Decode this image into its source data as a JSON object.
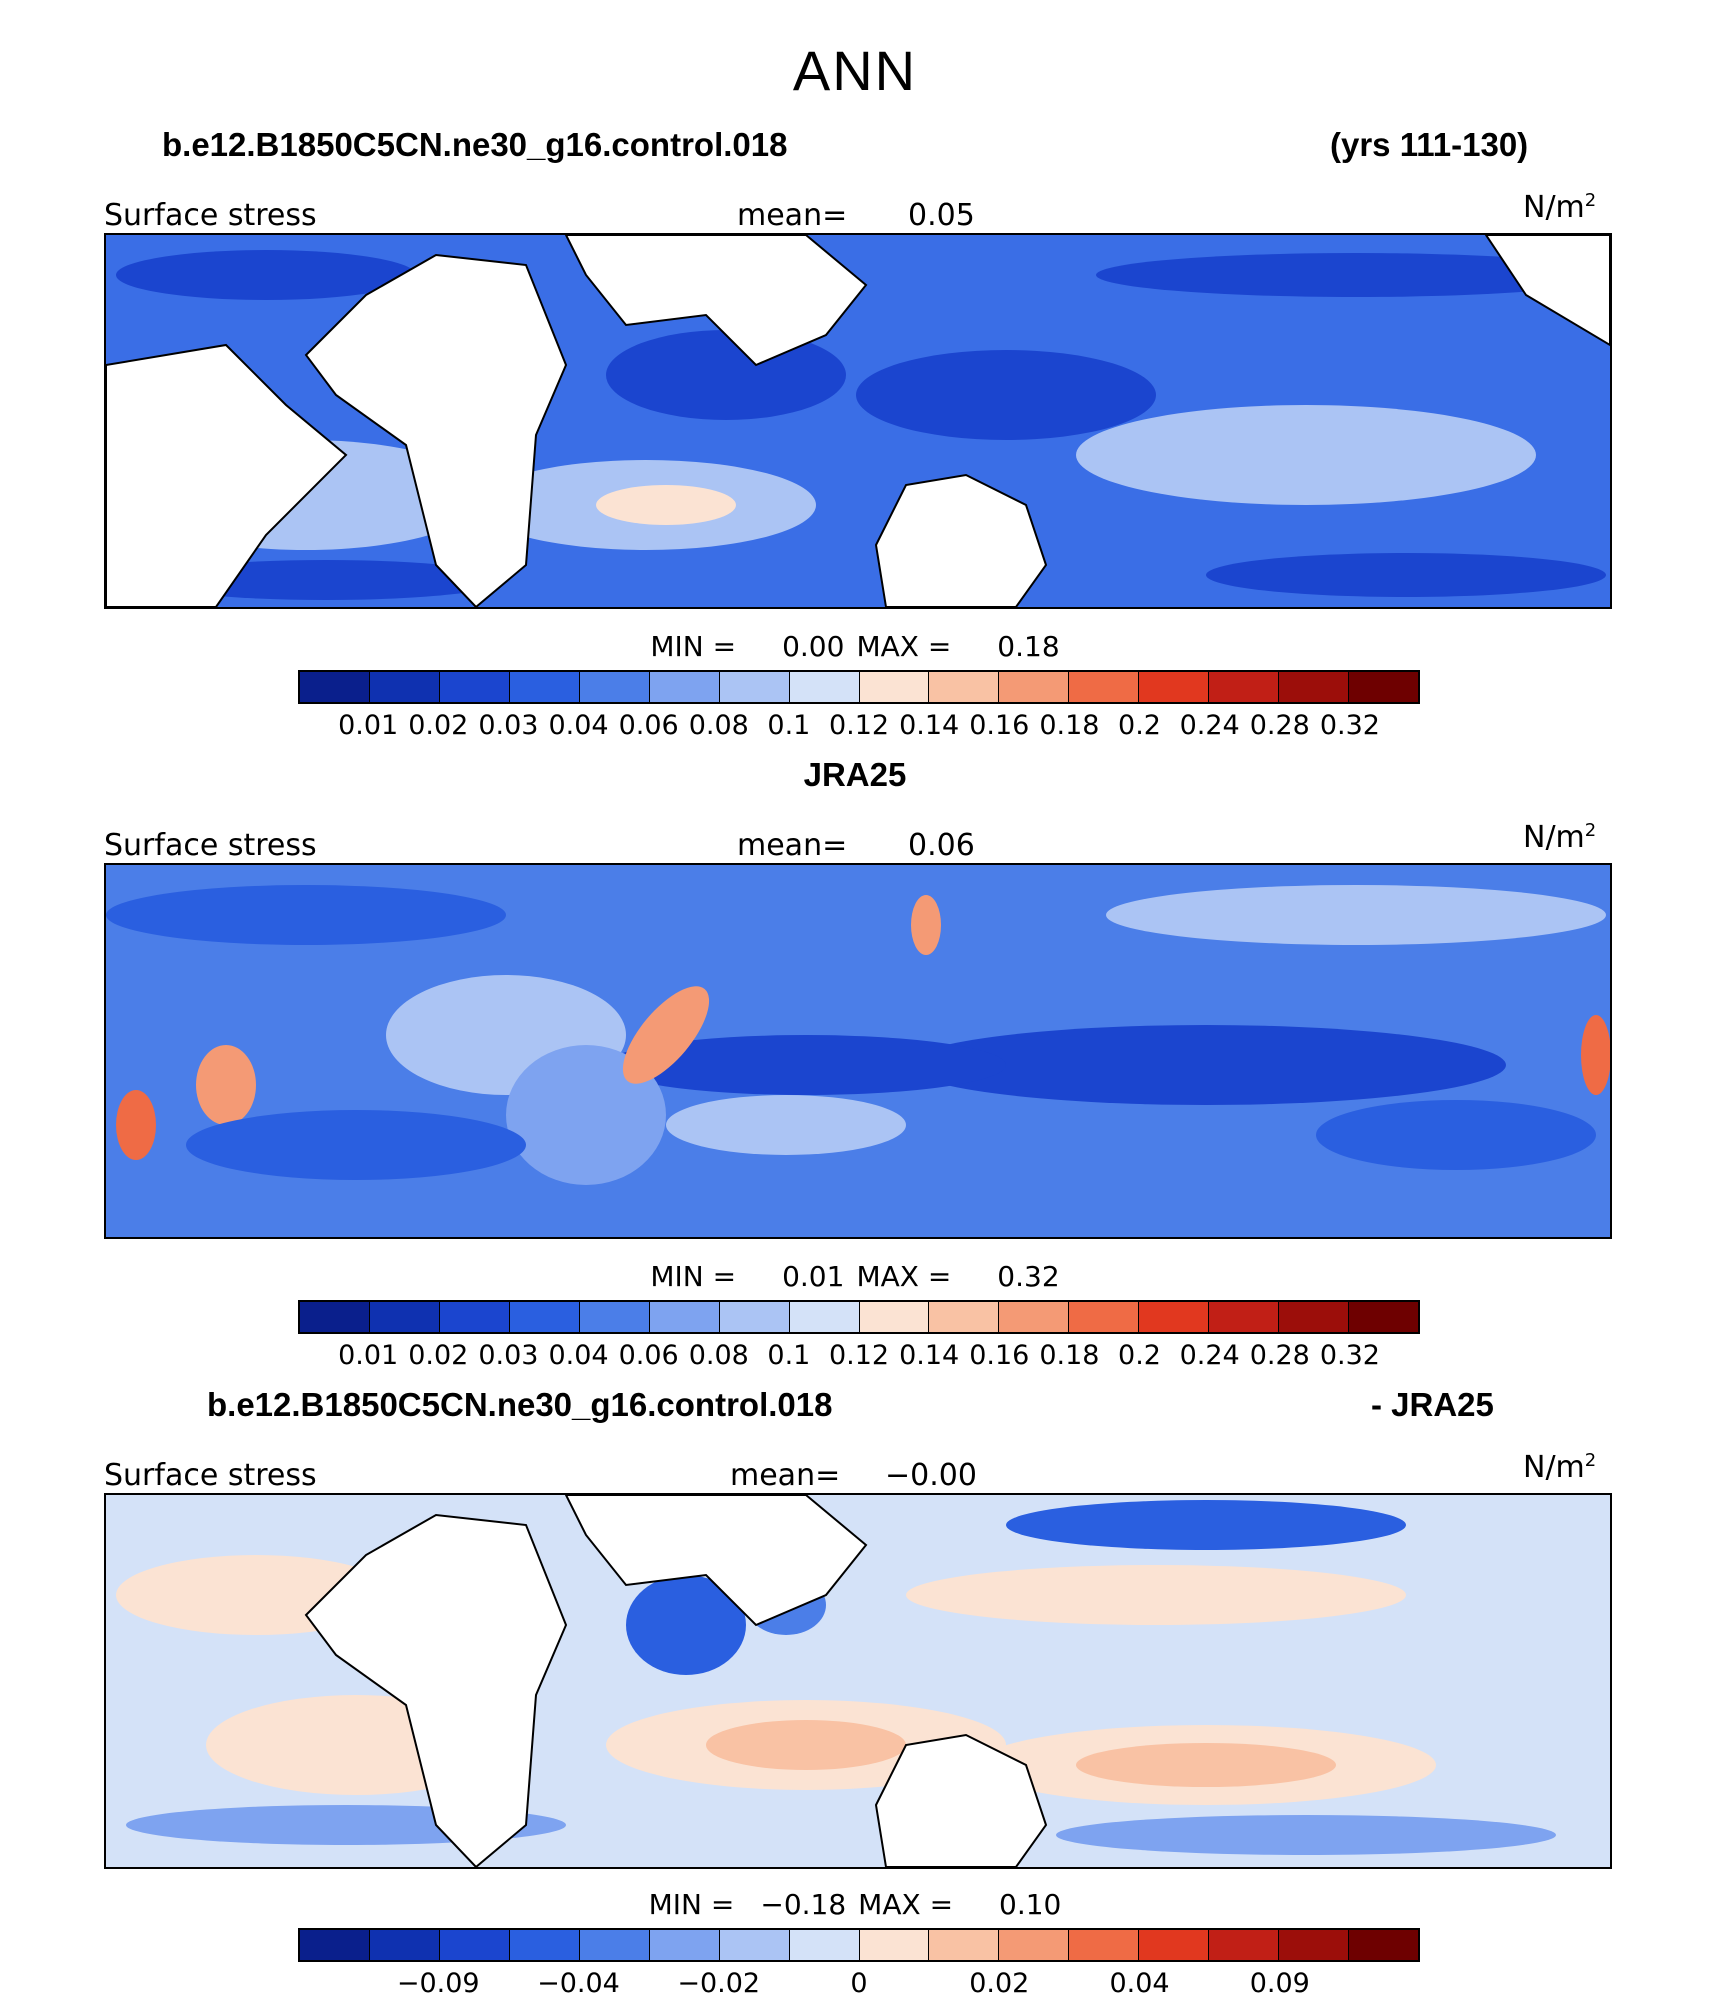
{
  "title": "ANN",
  "colorbar_colors": [
    "#0a1f8c",
    "#0f31b0",
    "#1b45cf",
    "#2a5fe0",
    "#4b7ee8",
    "#7ea3f0",
    "#abc4f4",
    "#d4e2f8",
    "#fbe3d3",
    "#f9c2a4",
    "#f49a75",
    "#ef6b45",
    "#e1381f",
    "#c11f16",
    "#9c0e0a",
    "#6e0000"
  ],
  "panels": [
    {
      "case_left": "b.e12.B1850C5CN.ne30_g16.control.018",
      "case_right": "(yrs 111-130)",
      "variable": "Surface stress",
      "mean_label": "mean=",
      "mean_value": "0.05",
      "units": "N/m",
      "units_exp": "2",
      "min_label": "MIN =",
      "min_value": "0.00",
      "max_label": "MAX =",
      "max_value": "0.18",
      "ticks": [
        "0.01",
        "0.02",
        "0.03",
        "0.04",
        "0.06",
        "0.08",
        "0.1",
        "0.12",
        "0.14",
        "0.16",
        "0.18",
        "0.2",
        "0.24",
        "0.28",
        "0.32"
      ]
    },
    {
      "case_center": "JRA25",
      "variable": "Surface stress",
      "mean_label": "mean=",
      "mean_value": "0.06",
      "units": "N/m",
      "units_exp": "2",
      "min_label": "MIN =",
      "min_value": "0.01",
      "max_label": "MAX =",
      "max_value": "0.32",
      "ticks": [
        "0.01",
        "0.02",
        "0.03",
        "0.04",
        "0.06",
        "0.08",
        "0.1",
        "0.12",
        "0.14",
        "0.16",
        "0.18",
        "0.2",
        "0.24",
        "0.28",
        "0.32"
      ]
    },
    {
      "case_left": "b.e12.B1850C5CN.ne30_g16.control.018",
      "case_right": "- JRA25",
      "variable": "Surface stress",
      "mean_label": "mean=",
      "mean_value": "−0.00",
      "units": "N/m",
      "units_exp": "2",
      "min_label": "MIN =",
      "min_value": "−0.18",
      "max_label": "MAX =",
      "max_value": "0.10",
      "ticks": [
        "−0.09",
        "−0.04",
        "−0.02",
        "0",
        "0.02",
        "0.04",
        "0.09"
      ]
    }
  ]
}
